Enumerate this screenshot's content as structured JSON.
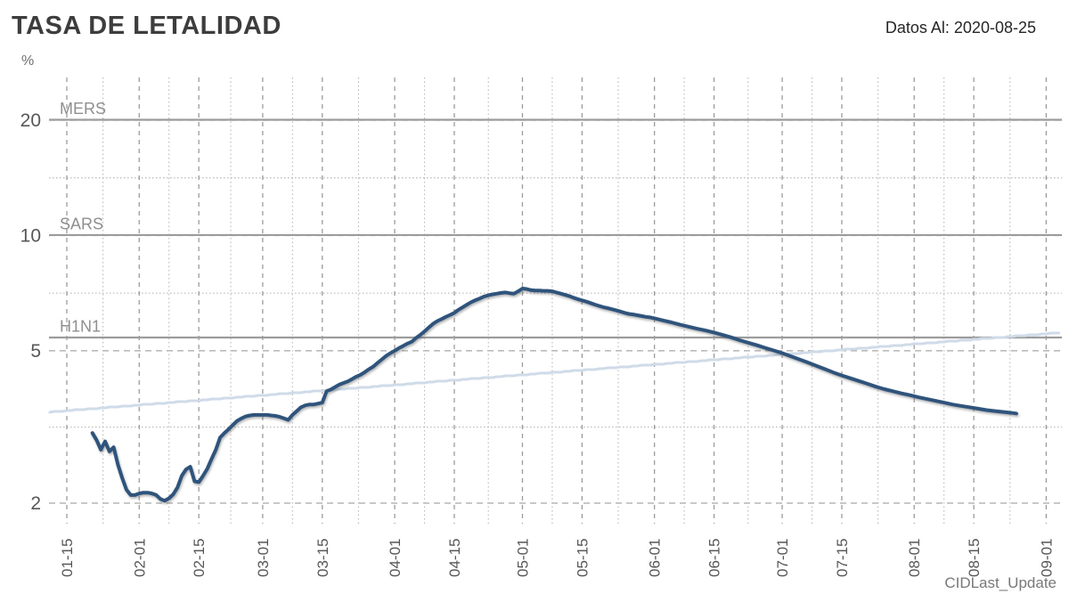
{
  "header": {
    "title": "TASA DE LETALIDAD",
    "date_label": "Datos Al: 2020-08-25"
  },
  "footer": {
    "watermark": "CIDLast_Update"
  },
  "colors": {
    "series_main": "#2f547c",
    "series_trend": "#cfdbe8",
    "reference_line": "#9c9c9c",
    "grid_major_h": "#a6a6a6",
    "grid_major_v": "#9b9b9b",
    "grid_minor": "#b8b8b8",
    "text_title": "#3d3d3d",
    "text_axis": "#575757",
    "text_reference": "#8f8f8f",
    "text_watermark": "#787878"
  },
  "chart_data": {
    "type": "line",
    "title": "TASA DE LETALIDAD",
    "ylabel": "%",
    "xlabel": "",
    "y_scale": "log",
    "ylim": [
      1.77,
      26
    ],
    "y_ticks": [
      20,
      10,
      5,
      2
    ],
    "y_minor_gridlines": [
      14.14,
      7.07,
      3.16
    ],
    "x_tick_labels": [
      "01-15",
      "02-01",
      "02-15",
      "03-01",
      "03-15",
      "04-01",
      "04-15",
      "05-01",
      "05-15",
      "06-01",
      "06-15",
      "07-01",
      "07-15",
      "08-01",
      "08-15",
      "09-01"
    ],
    "grid": "major-dashed, minor-dotted, both axes",
    "legend_position": "none",
    "reference_lines": [
      {
        "label": "MERS",
        "value": 20
      },
      {
        "label": "SARS",
        "value": 10
      },
      {
        "label": "H1N1",
        "value": 5.4
      }
    ],
    "series": [
      {
        "name": "tasa-letalidad-covid19",
        "color": "#2f547c",
        "stroke_width": 4,
        "points": [
          [
            "01-21",
            3.05
          ],
          [
            "01-22",
            2.92
          ],
          [
            "01-23",
            2.76
          ],
          [
            "01-24",
            2.9
          ],
          [
            "01-25",
            2.73
          ],
          [
            "01-26",
            2.8
          ],
          [
            "01-27",
            2.52
          ],
          [
            "01-28",
            2.33
          ],
          [
            "01-29",
            2.17
          ],
          [
            "01-30",
            2.1
          ],
          [
            "01-31",
            2.1
          ],
          [
            "02-01",
            2.12
          ],
          [
            "02-02",
            2.13
          ],
          [
            "02-03",
            2.13
          ],
          [
            "02-04",
            2.12
          ],
          [
            "02-05",
            2.1
          ],
          [
            "02-06",
            2.05
          ],
          [
            "02-07",
            2.03
          ],
          [
            "02-08",
            2.06
          ],
          [
            "02-09",
            2.11
          ],
          [
            "02-10",
            2.2
          ],
          [
            "02-11",
            2.36
          ],
          [
            "02-12",
            2.45
          ],
          [
            "02-13",
            2.49
          ],
          [
            "02-14",
            2.28
          ],
          [
            "02-15",
            2.27
          ],
          [
            "02-16",
            2.36
          ],
          [
            "02-17",
            2.46
          ],
          [
            "02-18",
            2.61
          ],
          [
            "02-19",
            2.76
          ],
          [
            "02-20",
            2.97
          ],
          [
            "02-21",
            3.05
          ],
          [
            "02-22",
            3.12
          ],
          [
            "02-23",
            3.2
          ],
          [
            "02-24",
            3.28
          ],
          [
            "02-25",
            3.33
          ],
          [
            "02-26",
            3.37
          ],
          [
            "02-27",
            3.39
          ],
          [
            "02-28",
            3.4
          ],
          [
            "02-29",
            3.4
          ],
          [
            "03-01",
            3.4
          ],
          [
            "03-02",
            3.4
          ],
          [
            "03-03",
            3.39
          ],
          [
            "03-04",
            3.38
          ],
          [
            "03-05",
            3.36
          ],
          [
            "03-06",
            3.33
          ],
          [
            "03-07",
            3.3
          ],
          [
            "03-08",
            3.4
          ],
          [
            "03-09",
            3.48
          ],
          [
            "03-10",
            3.56
          ],
          [
            "03-11",
            3.6
          ],
          [
            "03-12",
            3.62
          ],
          [
            "03-13",
            3.62
          ],
          [
            "03-14",
            3.64
          ],
          [
            "03-15",
            3.66
          ],
          [
            "03-16",
            3.92
          ],
          [
            "03-17",
            3.96
          ],
          [
            "03-18",
            4.02
          ],
          [
            "03-19",
            4.08
          ],
          [
            "03-20",
            4.12
          ],
          [
            "03-21",
            4.16
          ],
          [
            "03-22",
            4.22
          ],
          [
            "03-23",
            4.28
          ],
          [
            "03-24",
            4.33
          ],
          [
            "03-25",
            4.4
          ],
          [
            "03-26",
            4.48
          ],
          [
            "03-27",
            4.55
          ],
          [
            "03-28",
            4.65
          ],
          [
            "03-29",
            4.75
          ],
          [
            "03-30",
            4.85
          ],
          [
            "03-31",
            4.93
          ],
          [
            "04-01",
            5.0
          ],
          [
            "04-02",
            5.08
          ],
          [
            "04-03",
            5.15
          ],
          [
            "04-04",
            5.22
          ],
          [
            "04-05",
            5.28
          ],
          [
            "04-06",
            5.4
          ],
          [
            "04-07",
            5.5
          ],
          [
            "04-08",
            5.62
          ],
          [
            "04-09",
            5.75
          ],
          [
            "04-10",
            5.88
          ],
          [
            "04-11",
            5.98
          ],
          [
            "04-12",
            6.05
          ],
          [
            "04-13",
            6.13
          ],
          [
            "04-14",
            6.2
          ],
          [
            "04-15",
            6.28
          ],
          [
            "04-16",
            6.4
          ],
          [
            "04-17",
            6.5
          ],
          [
            "04-18",
            6.6
          ],
          [
            "04-19",
            6.7
          ],
          [
            "04-20",
            6.78
          ],
          [
            "04-21",
            6.85
          ],
          [
            "04-22",
            6.93
          ],
          [
            "04-23",
            6.98
          ],
          [
            "04-24",
            7.02
          ],
          [
            "04-25",
            7.05
          ],
          [
            "04-26",
            7.08
          ],
          [
            "04-27",
            7.1
          ],
          [
            "04-28",
            7.07
          ],
          [
            "04-29",
            7.05
          ],
          [
            "04-30",
            7.15
          ],
          [
            "05-01",
            7.27
          ],
          [
            "05-02",
            7.25
          ],
          [
            "05-03",
            7.2
          ],
          [
            "05-04",
            7.18
          ],
          [
            "05-05",
            7.18
          ],
          [
            "05-06",
            7.17
          ],
          [
            "05-07",
            7.17
          ],
          [
            "05-08",
            7.15
          ],
          [
            "05-09",
            7.1
          ],
          [
            "05-10",
            7.05
          ],
          [
            "05-11",
            7.0
          ],
          [
            "05-12",
            6.95
          ],
          [
            "05-13",
            6.88
          ],
          [
            "05-14",
            6.82
          ],
          [
            "05-15",
            6.77
          ],
          [
            "05-16",
            6.72
          ],
          [
            "05-17",
            6.66
          ],
          [
            "05-18",
            6.6
          ],
          [
            "05-19",
            6.55
          ],
          [
            "05-20",
            6.5
          ],
          [
            "05-21",
            6.46
          ],
          [
            "05-22",
            6.42
          ],
          [
            "05-23",
            6.38
          ],
          [
            "05-24",
            6.33
          ],
          [
            "05-25",
            6.28
          ],
          [
            "05-26",
            6.24
          ],
          [
            "05-27",
            6.22
          ],
          [
            "05-28",
            6.19
          ],
          [
            "05-29",
            6.16
          ],
          [
            "05-30",
            6.13
          ],
          [
            "05-31",
            6.11
          ],
          [
            "06-01",
            6.08
          ],
          [
            "06-03",
            6.0
          ],
          [
            "06-05",
            5.93
          ],
          [
            "06-07",
            5.85
          ],
          [
            "06-09",
            5.78
          ],
          [
            "06-11",
            5.71
          ],
          [
            "06-13",
            5.65
          ],
          [
            "06-15",
            5.58
          ],
          [
            "06-17",
            5.5
          ],
          [
            "06-19",
            5.42
          ],
          [
            "06-21",
            5.33
          ],
          [
            "06-23",
            5.25
          ],
          [
            "06-25",
            5.17
          ],
          [
            "06-27",
            5.09
          ],
          [
            "06-29",
            5.01
          ],
          [
            "07-01",
            4.93
          ],
          [
            "07-03",
            4.84
          ],
          [
            "07-05",
            4.75
          ],
          [
            "07-07",
            4.66
          ],
          [
            "07-09",
            4.57
          ],
          [
            "07-11",
            4.48
          ],
          [
            "07-13",
            4.39
          ],
          [
            "07-15",
            4.31
          ],
          [
            "07-17",
            4.24
          ],
          [
            "07-19",
            4.17
          ],
          [
            "07-21",
            4.1
          ],
          [
            "07-23",
            4.03
          ],
          [
            "07-25",
            3.97
          ],
          [
            "07-27",
            3.92
          ],
          [
            "07-29",
            3.87
          ],
          [
            "07-31",
            3.83
          ],
          [
            "08-02",
            3.78
          ],
          [
            "08-04",
            3.74
          ],
          [
            "08-06",
            3.7
          ],
          [
            "08-08",
            3.66
          ],
          [
            "08-10",
            3.62
          ],
          [
            "08-12",
            3.59
          ],
          [
            "08-14",
            3.56
          ],
          [
            "08-16",
            3.53
          ],
          [
            "08-18",
            3.5
          ],
          [
            "08-20",
            3.48
          ],
          [
            "08-22",
            3.46
          ],
          [
            "08-24",
            3.44
          ],
          [
            "08-25",
            3.43
          ]
        ]
      },
      {
        "name": "trend-line",
        "color": "#cfdbe8",
        "stroke_width": 3,
        "render": "log-linear-steps",
        "points": [
          [
            "01-11",
            3.46
          ],
          [
            "09-04",
            5.57
          ]
        ]
      }
    ]
  }
}
